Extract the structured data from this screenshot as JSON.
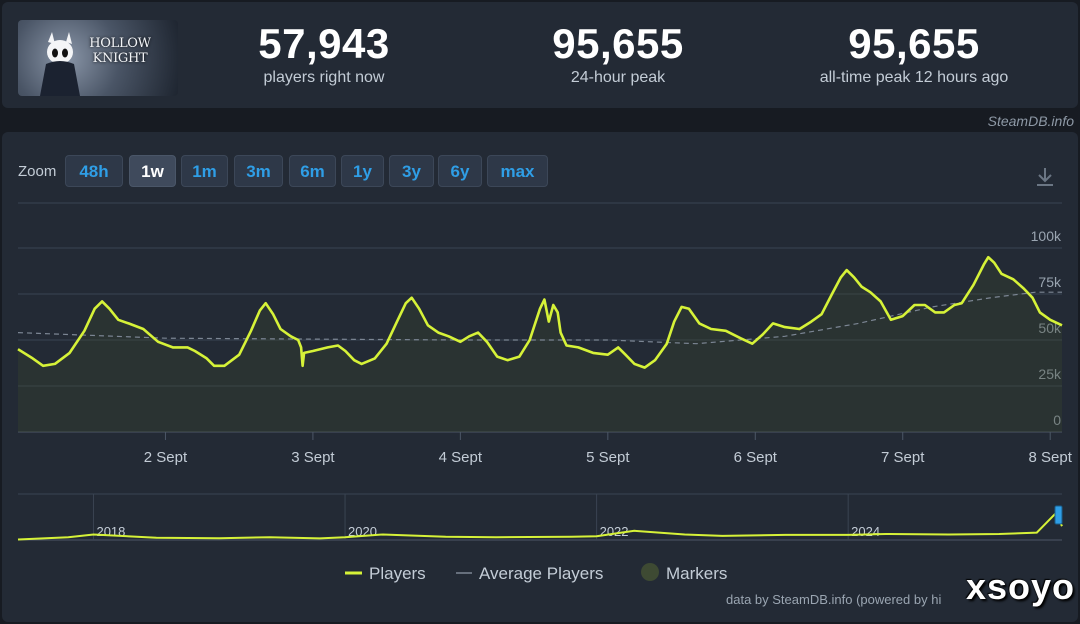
{
  "header": {
    "logo_text": "HOLLOW KNIGHT",
    "stats": [
      {
        "value": "57,943",
        "label": "players right now"
      },
      {
        "value": "95,655",
        "label": "24-hour peak"
      },
      {
        "value": "95,655",
        "label": "all-time peak 12 hours ago"
      }
    ]
  },
  "watermark": "SteamDB.info",
  "zoom": {
    "label": "Zoom",
    "options": [
      "48h",
      "1w",
      "1m",
      "3m",
      "6m",
      "1y",
      "3y",
      "6y",
      "max"
    ],
    "active": "1w"
  },
  "chart_data": [
    {
      "type": "line",
      "x_unit": "days since 1 Sept 00:00",
      "xticks": [
        {
          "x": 1,
          "label": "2 Sept"
        },
        {
          "x": 2,
          "label": "3 Sept"
        },
        {
          "x": 3,
          "label": "4 Sept"
        },
        {
          "x": 4,
          "label": "5 Sept"
        },
        {
          "x": 5,
          "label": "6 Sept"
        },
        {
          "x": 6,
          "label": "7 Sept"
        },
        {
          "x": 7,
          "label": "8 Sept"
        }
      ],
      "yticks": [
        {
          "y": 0,
          "label": "0"
        },
        {
          "y": 25000,
          "label": "25k"
        },
        {
          "y": 50000,
          "label": "50k"
        },
        {
          "y": 75000,
          "label": "75k"
        },
        {
          "y": 100000,
          "label": "100k"
        }
      ],
      "xlim": [
        0.0,
        7.08
      ],
      "ylim": [
        0,
        100000
      ],
      "grid": true,
      "series": [
        {
          "name": "Players",
          "color": "#d6f238",
          "points": [
            [
              0.0,
              45000
            ],
            [
              0.1,
              40000
            ],
            [
              0.17,
              36000
            ],
            [
              0.25,
              37000
            ],
            [
              0.35,
              43000
            ],
            [
              0.45,
              55000
            ],
            [
              0.52,
              67000
            ],
            [
              0.57,
              71000
            ],
            [
              0.62,
              67000
            ],
            [
              0.68,
              61000
            ],
            [
              0.75,
              59000
            ],
            [
              0.85,
              56000
            ],
            [
              0.95,
              49000
            ],
            [
              1.05,
              46000
            ],
            [
              1.15,
              46000
            ],
            [
              1.2,
              44000
            ],
            [
              1.28,
              40000
            ],
            [
              1.33,
              36000
            ],
            [
              1.4,
              36000
            ],
            [
              1.5,
              42000
            ],
            [
              1.58,
              55000
            ],
            [
              1.64,
              66000
            ],
            [
              1.68,
              70000
            ],
            [
              1.73,
              64000
            ],
            [
              1.78,
              56000
            ],
            [
              1.85,
              52000
            ],
            [
              1.9,
              50000
            ],
            [
              1.92,
              46000
            ],
            [
              1.93,
              36000
            ],
            [
              1.94,
              43000
            ],
            [
              2.0,
              44000
            ],
            [
              2.1,
              46000
            ],
            [
              2.17,
              47000
            ],
            [
              2.22,
              44000
            ],
            [
              2.28,
              39000
            ],
            [
              2.33,
              37000
            ],
            [
              2.42,
              40000
            ],
            [
              2.5,
              48000
            ],
            [
              2.57,
              60000
            ],
            [
              2.63,
              70000
            ],
            [
              2.67,
              73000
            ],
            [
              2.72,
              67000
            ],
            [
              2.78,
              58000
            ],
            [
              2.85,
              54000
            ],
            [
              2.92,
              52000
            ],
            [
              3.0,
              49000
            ],
            [
              3.06,
              52000
            ],
            [
              3.12,
              54000
            ],
            [
              3.18,
              49000
            ],
            [
              3.25,
              41000
            ],
            [
              3.32,
              39000
            ],
            [
              3.4,
              41000
            ],
            [
              3.47,
              50000
            ],
            [
              3.54,
              67000
            ],
            [
              3.57,
              72000
            ],
            [
              3.6,
              60000
            ],
            [
              3.63,
              69000
            ],
            [
              3.66,
              65000
            ],
            [
              3.68,
              54000
            ],
            [
              3.72,
              47000
            ],
            [
              3.8,
              46000
            ],
            [
              3.9,
              43000
            ],
            [
              4.0,
              42000
            ],
            [
              4.07,
              46000
            ],
            [
              4.12,
              42000
            ],
            [
              4.18,
              37000
            ],
            [
              4.25,
              35000
            ],
            [
              4.32,
              39000
            ],
            [
              4.4,
              48000
            ],
            [
              4.45,
              60000
            ],
            [
              4.5,
              68000
            ],
            [
              4.55,
              67000
            ],
            [
              4.62,
              59000
            ],
            [
              4.7,
              56000
            ],
            [
              4.8,
              55000
            ],
            [
              4.9,
              51000
            ],
            [
              4.98,
              48000
            ],
            [
              5.05,
              53000
            ],
            [
              5.12,
              59000
            ],
            [
              5.2,
              57000
            ],
            [
              5.3,
              56000
            ],
            [
              5.38,
              60000
            ],
            [
              5.45,
              64000
            ],
            [
              5.52,
              75000
            ],
            [
              5.58,
              84000
            ],
            [
              5.62,
              88000
            ],
            [
              5.67,
              84000
            ],
            [
              5.72,
              79000
            ],
            [
              5.78,
              76000
            ],
            [
              5.85,
              71000
            ],
            [
              5.92,
              61000
            ],
            [
              6.0,
              63000
            ],
            [
              6.08,
              69000
            ],
            [
              6.15,
              69000
            ],
            [
              6.22,
              65000
            ],
            [
              6.28,
              65000
            ],
            [
              6.35,
              69000
            ],
            [
              6.4,
              70000
            ],
            [
              6.48,
              80000
            ],
            [
              6.55,
              91000
            ],
            [
              6.58,
              95000
            ],
            [
              6.62,
              92000
            ],
            [
              6.67,
              86000
            ],
            [
              6.75,
              83000
            ],
            [
              6.82,
              78000
            ],
            [
              6.88,
              73000
            ],
            [
              6.93,
              65000
            ],
            [
              7.0,
              61000
            ],
            [
              7.08,
              58000
            ]
          ]
        },
        {
          "name": "Average Players",
          "color": "#7c8694",
          "points": [
            [
              0.0,
              54000
            ],
            [
              1.0,
              51000
            ],
            [
              2.0,
              50500
            ],
            [
              3.0,
              50000
            ],
            [
              4.0,
              50000
            ],
            [
              4.6,
              48000
            ],
            [
              5.2,
              52000
            ],
            [
              5.7,
              59000
            ],
            [
              6.2,
              68000
            ],
            [
              6.6,
              73000
            ],
            [
              6.9,
              76000
            ],
            [
              7.08,
              76000
            ]
          ]
        }
      ],
      "legend": {
        "placement": "bottom",
        "entries": [
          "Players",
          "Average Players",
          "Markers"
        ],
        "markers_color": "#3e4a33"
      }
    },
    {
      "type": "line",
      "role": "navigator",
      "x_unit": "year",
      "xlim": [
        2017.4,
        2025.7
      ],
      "ylim": [
        0,
        100000
      ],
      "xticks": [
        {
          "x": 2018,
          "label": "2018"
        },
        {
          "x": 2020,
          "label": "2020"
        },
        {
          "x": 2022,
          "label": "2022"
        },
        {
          "x": 2024,
          "label": "2024"
        }
      ],
      "series": [
        {
          "name": "Players",
          "color": "#d6f238",
          "points": [
            [
              2017.4,
              1000
            ],
            [
              2017.8,
              6000
            ],
            [
              2018.0,
              12000
            ],
            [
              2018.5,
              5000
            ],
            [
              2019.0,
              4000
            ],
            [
              2019.4,
              6000
            ],
            [
              2019.8,
              3500
            ],
            [
              2020.0,
              6000
            ],
            [
              2020.3,
              12000
            ],
            [
              2020.8,
              7000
            ],
            [
              2021.2,
              6000
            ],
            [
              2021.8,
              7000
            ],
            [
              2022.0,
              8000
            ],
            [
              2022.3,
              20000
            ],
            [
              2022.7,
              12000
            ],
            [
              2023.0,
              9000
            ],
            [
              2023.5,
              11000
            ],
            [
              2024.0,
              11000
            ],
            [
              2024.3,
              13000
            ],
            [
              2024.8,
              12000
            ],
            [
              2025.2,
              13000
            ],
            [
              2025.5,
              16000
            ],
            [
              2025.65,
              58000
            ],
            [
              2025.7,
              30000
            ]
          ]
        }
      ]
    }
  ],
  "footer": {
    "credit": "data by SteamDB.info (powered by hi",
    "brand": "xsoyo"
  }
}
